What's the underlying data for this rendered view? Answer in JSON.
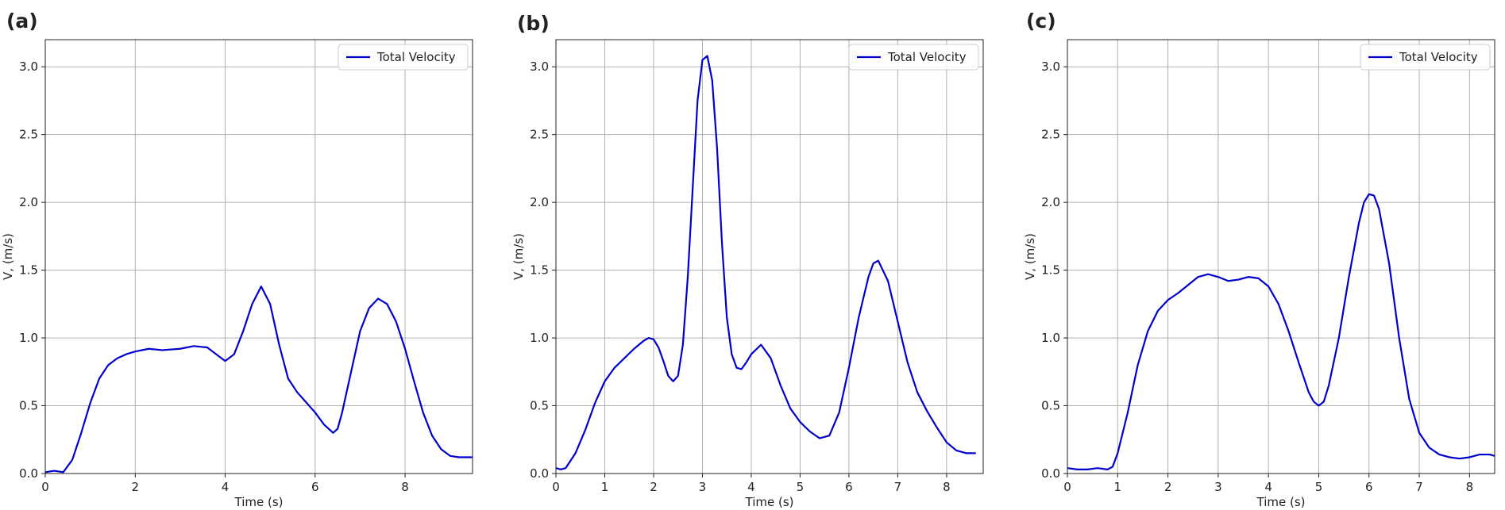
{
  "chart_data": [
    {
      "type": "line",
      "panel_label": "(a)",
      "xlabel": "Time (s)",
      "ylabel": "V, (m/s)",
      "xlim": [
        0,
        9.5
      ],
      "ylim": [
        0,
        3.2
      ],
      "xticks": [
        0,
        2,
        4,
        6,
        8
      ],
      "yticks": [
        0.0,
        0.5,
        1.0,
        1.5,
        2.0,
        2.5,
        3.0
      ],
      "grid": true,
      "legend_position": "top-right",
      "color": "#0000cc",
      "series": [
        {
          "name": "Total Velocity",
          "x": [
            0,
            0.2,
            0.4,
            0.6,
            0.8,
            1.0,
            1.2,
            1.4,
            1.6,
            1.8,
            2.0,
            2.3,
            2.6,
            3.0,
            3.3,
            3.6,
            3.8,
            4.0,
            4.2,
            4.4,
            4.6,
            4.8,
            5.0,
            5.2,
            5.4,
            5.6,
            6.0,
            6.2,
            6.4,
            6.5,
            6.6,
            6.8,
            7.0,
            7.2,
            7.4,
            7.6,
            7.8,
            8.0,
            8.2,
            8.4,
            8.6,
            8.8,
            9.0,
            9.2,
            9.5
          ],
          "y": [
            0.01,
            0.02,
            0.01,
            0.1,
            0.3,
            0.52,
            0.7,
            0.8,
            0.85,
            0.88,
            0.9,
            0.92,
            0.91,
            0.92,
            0.94,
            0.93,
            0.88,
            0.83,
            0.88,
            1.05,
            1.25,
            1.38,
            1.25,
            0.95,
            0.7,
            0.6,
            0.45,
            0.36,
            0.3,
            0.33,
            0.45,
            0.75,
            1.05,
            1.22,
            1.29,
            1.25,
            1.12,
            0.92,
            0.68,
            0.45,
            0.28,
            0.18,
            0.13,
            0.12,
            0.12
          ]
        }
      ]
    },
    {
      "type": "line",
      "panel_label": "(b)",
      "xlabel": "Time (s)",
      "ylabel": "V, (m/s)",
      "xlim": [
        0,
        8.75
      ],
      "ylim": [
        0,
        3.2
      ],
      "xticks": [
        0,
        1,
        2,
        3,
        4,
        5,
        6,
        7,
        8
      ],
      "yticks": [
        0.0,
        0.5,
        1.0,
        1.5,
        2.0,
        2.5,
        3.0
      ],
      "grid": true,
      "legend_position": "top-right",
      "color": "#0000cc",
      "series": [
        {
          "name": "Total Velocity",
          "x": [
            0,
            0.1,
            0.2,
            0.4,
            0.6,
            0.8,
            1.0,
            1.2,
            1.4,
            1.6,
            1.8,
            1.9,
            2.0,
            2.1,
            2.2,
            2.3,
            2.4,
            2.5,
            2.6,
            2.7,
            2.8,
            2.9,
            3.0,
            3.1,
            3.2,
            3.3,
            3.4,
            3.5,
            3.6,
            3.7,
            3.8,
            3.9,
            4.0,
            4.2,
            4.4,
            4.6,
            4.8,
            5.0,
            5.2,
            5.4,
            5.6,
            5.8,
            6.0,
            6.2,
            6.4,
            6.5,
            6.6,
            6.8,
            7.0,
            7.2,
            7.4,
            7.6,
            7.8,
            8.0,
            8.2,
            8.4,
            8.6
          ],
          "y": [
            0.04,
            0.03,
            0.04,
            0.15,
            0.32,
            0.52,
            0.68,
            0.78,
            0.85,
            0.92,
            0.98,
            1.0,
            0.99,
            0.93,
            0.83,
            0.72,
            0.68,
            0.72,
            0.95,
            1.45,
            2.1,
            2.75,
            3.05,
            3.08,
            2.9,
            2.4,
            1.7,
            1.15,
            0.88,
            0.78,
            0.77,
            0.82,
            0.88,
            0.95,
            0.85,
            0.65,
            0.48,
            0.38,
            0.31,
            0.26,
            0.28,
            0.45,
            0.78,
            1.15,
            1.45,
            1.55,
            1.57,
            1.42,
            1.12,
            0.82,
            0.6,
            0.46,
            0.34,
            0.23,
            0.17,
            0.15,
            0.15
          ]
        }
      ]
    },
    {
      "type": "line",
      "panel_label": "(c)",
      "xlabel": "Time (s)",
      "ylabel": "V, (m/s)",
      "xlim": [
        0,
        8.5
      ],
      "ylim": [
        0,
        3.2
      ],
      "xticks": [
        0,
        1,
        2,
        3,
        4,
        5,
        6,
        7,
        8
      ],
      "yticks": [
        0.0,
        0.5,
        1.0,
        1.5,
        2.0,
        2.5,
        3.0
      ],
      "grid": true,
      "legend_position": "top-right",
      "color": "#0000cc",
      "series": [
        {
          "name": "Total Velocity",
          "x": [
            0,
            0.2,
            0.4,
            0.6,
            0.8,
            0.9,
            1.0,
            1.2,
            1.4,
            1.6,
            1.8,
            2.0,
            2.2,
            2.4,
            2.6,
            2.8,
            3.0,
            3.2,
            3.4,
            3.6,
            3.8,
            4.0,
            4.2,
            4.4,
            4.6,
            4.8,
            4.9,
            5.0,
            5.1,
            5.2,
            5.4,
            5.6,
            5.8,
            5.9,
            6.0,
            6.1,
            6.2,
            6.4,
            6.6,
            6.8,
            7.0,
            7.2,
            7.4,
            7.6,
            7.8,
            8.0,
            8.2,
            8.4,
            8.5
          ],
          "y": [
            0.04,
            0.03,
            0.03,
            0.04,
            0.03,
            0.05,
            0.15,
            0.45,
            0.8,
            1.05,
            1.2,
            1.28,
            1.33,
            1.39,
            1.45,
            1.47,
            1.45,
            1.42,
            1.43,
            1.45,
            1.44,
            1.38,
            1.25,
            1.05,
            0.82,
            0.6,
            0.53,
            0.5,
            0.53,
            0.65,
            1.0,
            1.45,
            1.85,
            2.0,
            2.06,
            2.05,
            1.95,
            1.55,
            1.0,
            0.55,
            0.3,
            0.19,
            0.14,
            0.12,
            0.11,
            0.12,
            0.14,
            0.14,
            0.13
          ]
        }
      ]
    }
  ]
}
